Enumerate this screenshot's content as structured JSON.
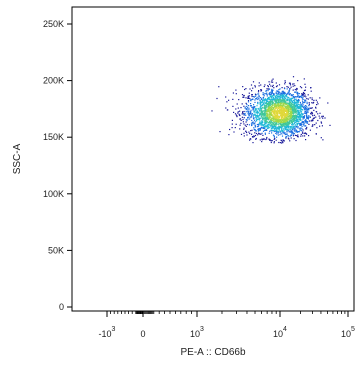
{
  "chart_data": {
    "type": "scatter",
    "title": "",
    "xlabel": "PE-A :: CD66b",
    "ylabel": "SSC-A",
    "x_scale": "biexponential",
    "y_scale": "linear",
    "xlim": [
      -1500,
      130000
    ],
    "ylim": [
      -5000,
      262144
    ],
    "x_ticks": [
      {
        "value": -1000,
        "base": "-10",
        "exp": "3"
      },
      {
        "value": 0,
        "base": "0",
        "exp": ""
      },
      {
        "value": 1000,
        "base": "10",
        "exp": "3"
      },
      {
        "value": 10000,
        "base": "10",
        "exp": "4"
      },
      {
        "value": 100000,
        "base": "10",
        "exp": "5"
      }
    ],
    "y_ticks": [
      {
        "value": 0,
        "label": "0"
      },
      {
        "value": 50000,
        "label": "50K"
      },
      {
        "value": 100000,
        "label": "100K"
      },
      {
        "value": 150000,
        "label": "150K"
      },
      {
        "value": 200000,
        "label": "200K"
      },
      {
        "value": 250000,
        "label": "250K"
      }
    ],
    "series": [
      {
        "population_center": {
          "x": 10000,
          "y": 172000
        },
        "x_range": [
          1000,
          90000
        ],
        "y_range": [
          145000,
          205000
        ],
        "density_colors": [
          "#1a1a9a",
          "#1a6ee0",
          "#1fb8d8",
          "#3fc79a",
          "#9fd84a",
          "#e0d83a"
        ]
      }
    ],
    "grid": false,
    "legend": "none"
  }
}
